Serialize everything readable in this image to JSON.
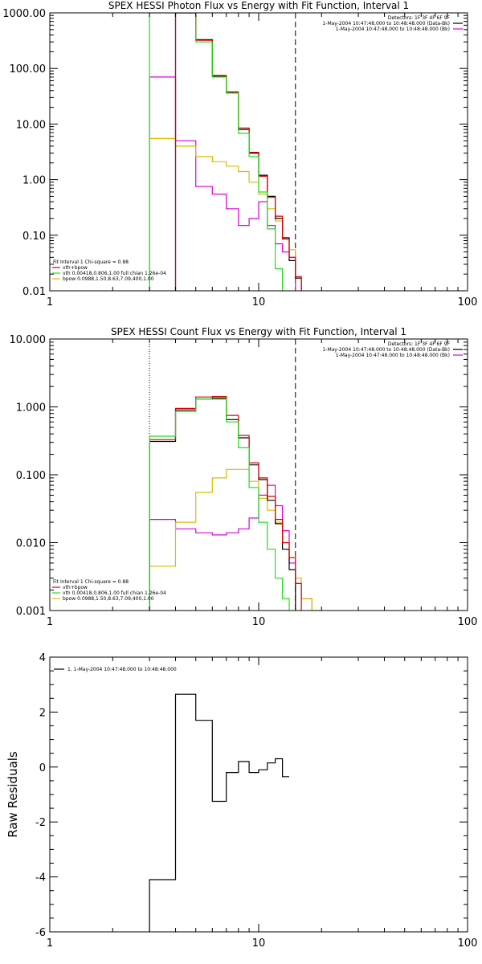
{
  "colors": {
    "observed": "#000000",
    "total": "#dd0000",
    "vth": "#22dd22",
    "bpow": "#ddbb00",
    "bk": "#dd00dd"
  },
  "chart_data": [
    {
      "type": "line",
      "title": "SPEX HESSI Photon Flux vs Energy with Fit Function, Interval 1",
      "xscale": "log",
      "yscale": "log",
      "xlim": [
        1,
        100
      ],
      "ylim": [
        0.01,
        1000
      ],
      "xticks": [
        "1",
        "10",
        "100"
      ],
      "yticks": [
        "0.01",
        "0.10",
        "1.00",
        "10.00",
        "100.00",
        "1000.00"
      ],
      "header_lines": [
        "Detectors: 1F 3F 4F 6F 9F",
        "1-May-2004 10:47:48.000 to 10:48:48.000 (Data-Bk)",
        "1-May-2004 10:47:48.000 to 10:48:48.000 (Bk)"
      ],
      "legend_lines": [
        "Fit Interval 1   Chi-square = 0.88",
        "vth+bpow",
        "vth 0.00418,0.806,1.00  full chian 1.26e-04",
        "bpow 0.0988,1.50,8.63,7.09,400,1.00"
      ],
      "vlines": [
        {
          "x": 3.0,
          "style": "dotted"
        },
        {
          "x": 15.0,
          "style": "dashed"
        }
      ],
      "bin_edges": [
        3.0,
        4.0,
        5.0,
        6.0,
        7.0,
        8.0,
        9.0,
        10.0,
        11.0,
        12.0,
        13.0,
        14.0,
        15.0,
        16.0,
        18.0,
        20.0
      ],
      "series": [
        {
          "key": "bk",
          "color": "#dd00dd",
          "start": 3.0,
          "values": [
            70,
            5.0,
            0.75,
            0.55,
            0.3,
            0.15,
            0.2,
            0.4,
            0.15,
            0.07,
            0.05,
            0.04
          ]
        },
        {
          "key": "bpow",
          "color": "#ddbb00",
          "start": 3.0,
          "values": [
            5.5,
            4.0,
            2.6,
            2.1,
            1.75,
            1.4,
            0.9,
            0.55,
            0.3,
            0.18,
            0.09,
            0.055,
            0.017
          ]
        },
        {
          "key": "observed",
          "color": "#000000",
          "start": 4.0,
          "values": [
            1000,
            330,
            72,
            37,
            8.0,
            3.0,
            1.2,
            0.5,
            0.2,
            0.09,
            0.035,
            0.017
          ]
        },
        {
          "key": "total",
          "color": "#dd0000",
          "start": 4.0,
          "values": [
            1000,
            320,
            75,
            38,
            8.5,
            3.1,
            1.15,
            0.48,
            0.22,
            0.085,
            0.04,
            0.018
          ]
        },
        {
          "key": "vth",
          "color": "#22dd22",
          "start": 3.0,
          "values": [
            1000,
            1000,
            300,
            70,
            36,
            6.8,
            2.6,
            0.6,
            0.13,
            0.025,
            0.008,
            0.004
          ]
        }
      ]
    },
    {
      "type": "line",
      "title": "SPEX HESSI Count Flux vs Energy with Fit Function, Interval 1",
      "xscale": "log",
      "yscale": "log",
      "xlim": [
        1,
        100
      ],
      "ylim": [
        0.001,
        10
      ],
      "xticks": [
        "1",
        "10",
        "100"
      ],
      "yticks": [
        "0.001",
        "0.010",
        "0.100",
        "1.000",
        "10.000"
      ],
      "header_lines": [
        "Detectors: 1F 3F 4F 6F 9F",
        "1-May-2004 10:47:48.000 to 10:48:48.000 (Data-Bk)",
        "1-May-2004 10:47:48.000 to 10:48:48.000 (Bk)"
      ],
      "legend_lines": [
        "Fit Interval 1   Chi-square = 0.88",
        "vth+bpow",
        "vth 0.00418,0.806,1.00  full chian 1.26e-04",
        "bpow 0.0988,1.50,8.63,7.09,400,1.00"
      ],
      "vlines": [
        {
          "x": 3.0,
          "style": "dotted"
        },
        {
          "x": 15.0,
          "style": "dashed"
        }
      ],
      "bin_edges": [
        3.0,
        4.0,
        5.0,
        6.0,
        7.0,
        8.0,
        9.0,
        10.0,
        11.0,
        12.0,
        13.0,
        14.0,
        15.0,
        16.0,
        18.0,
        20.0
      ],
      "series": [
        {
          "key": "bk",
          "color": "#dd00dd",
          "start": 3.0,
          "values": [
            0.022,
            0.016,
            0.014,
            0.013,
            0.014,
            0.016,
            0.023,
            0.05,
            0.07,
            0.035,
            0.015,
            0.005,
            0.0025,
            0.0015
          ]
        },
        {
          "key": "bpow",
          "color": "#ddbb00",
          "start": 3.0,
          "values": [
            0.0045,
            0.02,
            0.055,
            0.09,
            0.12,
            0.12,
            0.08,
            0.045,
            0.03,
            0.02,
            0.01,
            0.006,
            0.003,
            0.0015,
            0.001
          ]
        },
        {
          "key": "observed",
          "color": "#000000",
          "start": 3.0,
          "values": [
            0.31,
            0.9,
            1.3,
            1.35,
            0.65,
            0.35,
            0.14,
            0.085,
            0.042,
            0.019,
            0.008,
            0.004
          ]
        },
        {
          "key": "total",
          "color": "#dd0000",
          "start": 3.0,
          "values": [
            0.33,
            0.95,
            1.4,
            1.42,
            0.75,
            0.38,
            0.15,
            0.09,
            0.048,
            0.022,
            0.01,
            0.006,
            0.0025
          ]
        },
        {
          "key": "vth",
          "color": "#22dd22",
          "start": 3.0,
          "values": [
            0.37,
            0.85,
            1.3,
            1.3,
            0.6,
            0.25,
            0.065,
            0.02,
            0.008,
            0.003,
            0.0015,
            0.0008
          ]
        }
      ]
    },
    {
      "type": "line",
      "title": "",
      "xscale": "log",
      "yscale": "linear",
      "xlim": [
        1,
        100
      ],
      "ylim": [
        -6,
        4
      ],
      "xticks": [
        "1",
        "10",
        "100"
      ],
      "yticks": [
        "-6",
        "-4",
        "-2",
        "0",
        "2",
        "4"
      ],
      "ylabel": "Raw Residuals",
      "legend_lines": [
        "1. 1-May-2004 10:47:48.000 to 10:48:48.000"
      ],
      "bin_edges": [
        3.0,
        4.0,
        5.0,
        6.0,
        7.0,
        8.0,
        9.0,
        10.0,
        11.0,
        12.0,
        13.0,
        14.0,
        15.0
      ],
      "series": [
        {
          "key": "residual",
          "color": "#000000",
          "start": 3.0,
          "values": [
            -4.1,
            2.65,
            1.7,
            -1.25,
            -0.2,
            0.2,
            -0.2,
            -0.1,
            0.15,
            0.3,
            -0.35
          ]
        }
      ]
    }
  ]
}
